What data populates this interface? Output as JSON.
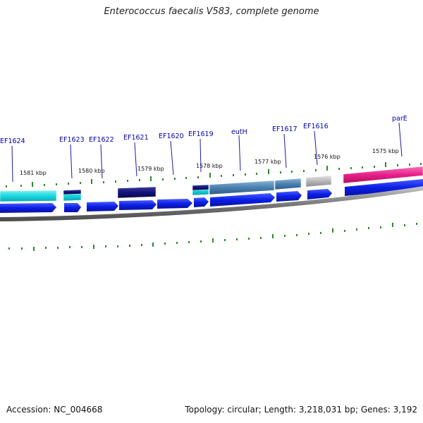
{
  "title": "Enterococcus faecalis V583, complete genome",
  "accession": "Accession: NC_004668",
  "topology": "Topology: circular; Length: 3,218,031 bp; Genes: 3,192",
  "kbp_labels": [
    "1581 kbp",
    "1580 kbp",
    "1579 kbp",
    "1578 kbp",
    "1577 kbp",
    "1576 kbp",
    "1575 kbp"
  ],
  "gene_labels": [
    "EF1624",
    "EF1623",
    "EF1622",
    "EF1621",
    "EF1620",
    "EF1619",
    "eutH",
    "EF1617",
    "EF1616",
    "parE"
  ],
  "colors": {
    "gene_label": "#0000aa",
    "cds_arrow": "#0a1ee6",
    "cyan": "#1ad8e0",
    "navy": "#12127a",
    "steel_blue": "#4a80b0",
    "gray": "#b8b8bc",
    "magenta": "#e8208a",
    "tick": "#2a8a2a",
    "backbone": "#7a7a7a"
  }
}
